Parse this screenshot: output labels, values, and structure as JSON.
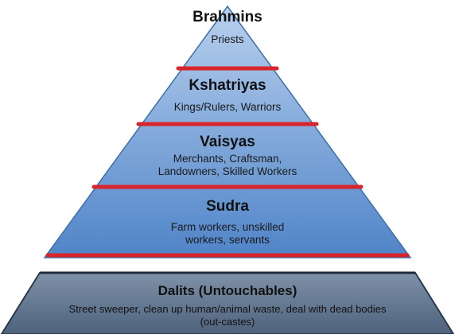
{
  "colors": {
    "pyramid_top": "#b8d0ee",
    "pyramid_bottom": "#4f84c8",
    "pyramid_edge": "#3d6fa8",
    "divider": "#d8252b",
    "base_top": "#7e91a8",
    "base_bottom": "#4e627c",
    "base_edge": "#2b3a4e",
    "text": "#111111"
  },
  "tiers": [
    {
      "name": "Brahmins",
      "description": [
        "Priests"
      ]
    },
    {
      "name": "Kshatriyas",
      "description": [
        "Kings/Rulers, Warriors"
      ]
    },
    {
      "name": "Vaisyas",
      "description": [
        "Merchants, Craftsman,",
        "Landowners, Skilled Workers"
      ]
    },
    {
      "name": "Sudra",
      "description": [
        "Farm workers, unskilled",
        "workers, servants"
      ]
    }
  ],
  "base": {
    "name": "Dalits (Untouchables)",
    "description": [
      "Street sweeper, clean up human/animal waste, deal with dead bodies",
      "(out-castes)"
    ]
  }
}
